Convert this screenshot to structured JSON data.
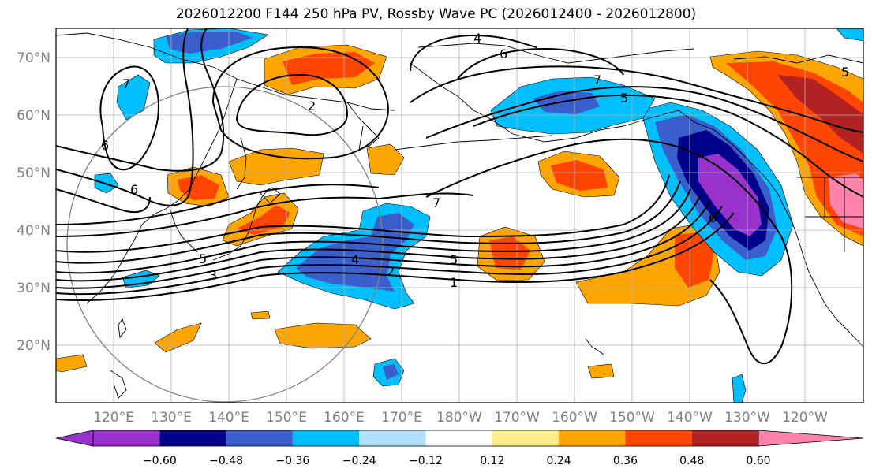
{
  "title": "2026012200 F144 250 hPa PV, Rossby Wave PC (2026012400 - 2026012800)",
  "lat_labels": [
    "70°N",
    "60°N",
    "50°N",
    "40°N",
    "30°N",
    "20°N"
  ],
  "lon_labels": [
    "120°E",
    "130°E",
    "140°E",
    "150°E",
    "160°E",
    "170°E",
    "180°W",
    "170°W",
    "160°W",
    "150°W",
    "140°W",
    "130°W",
    "120°W"
  ],
  "colorbar": {
    "ticks": [
      "−0.60",
      "−0.48",
      "−0.36",
      "−0.24",
      "−0.12",
      "0.12",
      "0.24",
      "0.36",
      "0.48",
      "0.60"
    ],
    "colors": [
      "#9932cc",
      "#00008b",
      "#3a5fcd",
      "#00bfff",
      "#b0e2ff",
      "#ffffff",
      "#ffec8b",
      "#ffa500",
      "#ff4500",
      "#b22222",
      "#ff82ab"
    ]
  },
  "contour_labels": [
    "4",
    "6",
    "7",
    "7",
    "5",
    "6",
    "2",
    "6",
    "7",
    "3",
    "4",
    "2",
    "5",
    "1",
    "5",
    "6",
    "5"
  ]
}
